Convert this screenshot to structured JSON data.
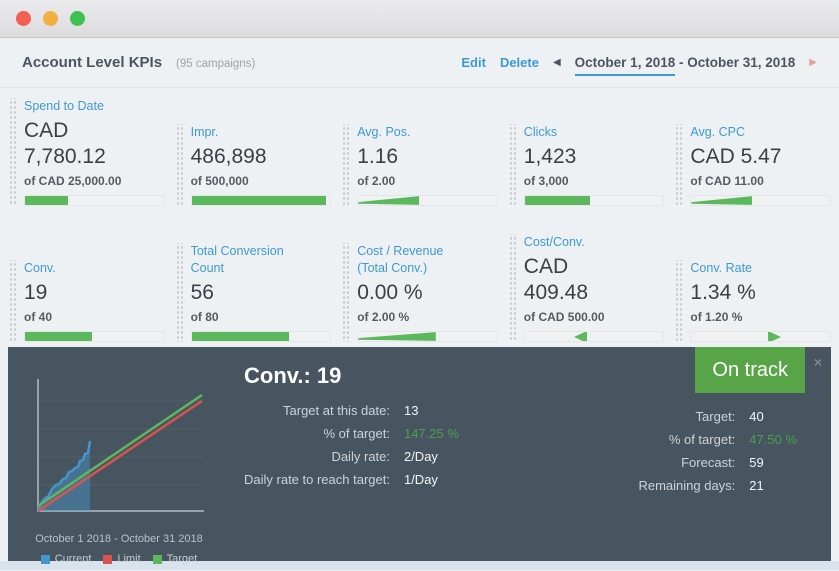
{
  "colors": {
    "accent_blue": "#3d9ad0",
    "green": "#5cb85c",
    "panel_bg": "#475560",
    "badge_green": "#57a546",
    "value_green": "#4d9e4d",
    "limit_red": "#d9534f",
    "current_blue": "#4596cb"
  },
  "window": {
    "traffic_lights": [
      "close",
      "minimize",
      "zoom"
    ]
  },
  "header": {
    "title": "Account Level KPIs",
    "campaign_count": "(95 campaigns)",
    "edit_label": "Edit",
    "delete_label": "Delete",
    "prev_icon": "◀",
    "next_icon": "▶",
    "date_range_start": "October 1, 2018",
    "date_range_separator": " - ",
    "date_range_end": "October 31, 2018"
  },
  "kpi_cards": [
    {
      "label": "Spend to Date",
      "value": "CAD\n7,780.12",
      "target": "of CAD 25,000.00",
      "progress": {
        "type": "bar",
        "percent": 31
      }
    },
    {
      "label": "Impr.",
      "value": "486,898",
      "target": "of 500,000",
      "progress": {
        "type": "bar",
        "percent": 97
      }
    },
    {
      "label": "Avg. Pos.",
      "value": "1.16",
      "target": "of 2.00",
      "progress": {
        "type": "wedge",
        "percent": 44
      }
    },
    {
      "label": "Clicks",
      "value": "1,423",
      "target": "of 3,000",
      "progress": {
        "type": "bar",
        "percent": 47
      }
    },
    {
      "label": "Avg. CPC",
      "value": "CAD 5.47",
      "target": "of CAD 11.00",
      "progress": {
        "type": "wedge",
        "percent": 44
      }
    },
    {
      "label": "Conv.",
      "value": "19",
      "target": "of 40",
      "progress": {
        "type": "bar",
        "percent": 48
      }
    },
    {
      "label": "Total Conversion\nCount",
      "value": "56",
      "target": "of 80",
      "progress": {
        "type": "bar",
        "percent": 70
      }
    },
    {
      "label": "Cost / Revenue\n(Total Conv.)",
      "value": "0.00 %",
      "target": "of 2.00 %",
      "progress": {
        "type": "wedge",
        "percent": 56
      }
    },
    {
      "label": "Cost/Conv.",
      "value": "CAD\n409.48",
      "target": "of CAD 500.00",
      "progress": {
        "type": "tri-left",
        "percent": 45
      }
    },
    {
      "label": "Conv. Rate",
      "value": "1.34 %",
      "target": "of 1.20 %",
      "progress": {
        "type": "tri-right",
        "percent": 55
      }
    }
  ],
  "panel": {
    "title": "Conv.: 19",
    "status_badge": "On track",
    "close_icon": "×",
    "left_stats": [
      {
        "label": "Target at this date:",
        "value": "13",
        "highlight": false
      },
      {
        "label": "% of target:",
        "value": "147.25 %",
        "highlight": true
      },
      {
        "label": "Daily rate:",
        "value": "2/Day",
        "highlight": false
      },
      {
        "label": "Daily rate to reach target:",
        "value": "1/Day",
        "highlight": false
      }
    ],
    "right_stats": [
      {
        "label": "Target:",
        "value": "40",
        "highlight": false
      },
      {
        "label": "% of target:",
        "value": "47.50 %",
        "highlight": true
      },
      {
        "label": "Forecast:",
        "value": "59",
        "highlight": false
      },
      {
        "label": "Remaining days:",
        "value": "21",
        "highlight": false
      }
    ],
    "chart": {
      "caption": "October 1 2018 - October 31 2018",
      "legend": [
        {
          "label": "Current",
          "color": "#4596cb"
        },
        {
          "label": "Limit",
          "color": "#d9534f"
        },
        {
          "label": "Target",
          "color": "#5cb85c"
        }
      ],
      "chart_data": {
        "type": "area",
        "xlabel": "October 1 2018 - October 31 2018",
        "x_days": [
          1,
          2,
          3,
          4,
          5,
          6,
          7,
          8,
          9,
          10
        ],
        "series": [
          {
            "name": "Current",
            "type": "area",
            "values": [
              2,
              4,
              5,
              7,
              9,
              10,
              12,
              13,
              15,
              19
            ]
          },
          {
            "name": "Limit",
            "type": "line",
            "values_note": "linear 0 to 38 over days 1-31"
          },
          {
            "name": "Target",
            "type": "line",
            "values_note": "linear 0 to 40 over days 1-31"
          }
        ],
        "ylim": [
          0,
          45
        ],
        "grid": "horizontal"
      }
    }
  }
}
